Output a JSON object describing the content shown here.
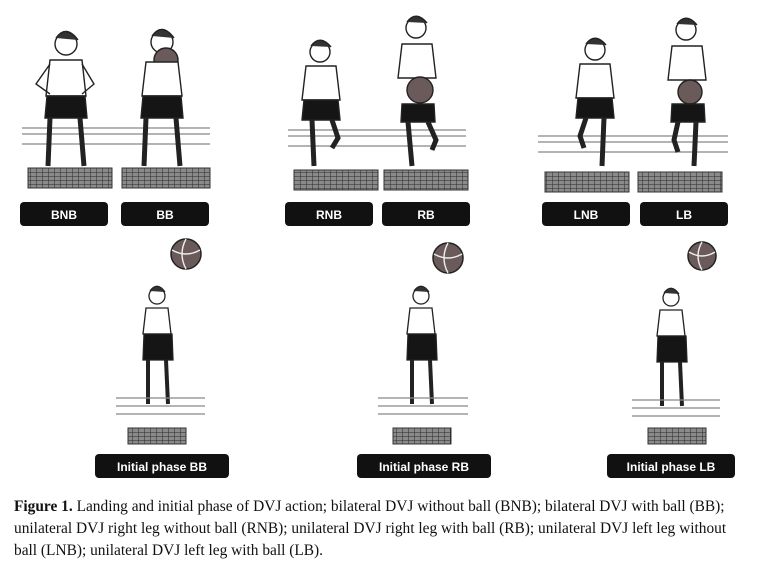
{
  "colors": {
    "label_bg": "#111111",
    "label_text": "#ffffff",
    "mat": "#3a3a3a",
    "ball": "#6a5a5a"
  },
  "panels": [
    {
      "left_label": "BNB",
      "right_label": "BB",
      "initial_label": "Initial phase BB"
    },
    {
      "left_label": "RNB",
      "right_label": "RB",
      "initial_label": "Initial phase RB"
    },
    {
      "left_label": "LNB",
      "right_label": "LB",
      "initial_label": "Initial phase LB"
    }
  ],
  "caption": {
    "label": "Figure 1.",
    "text": "Landing and initial phase of DVJ action; bilateral DVJ without ball (BNB); bilateral DVJ with ball (BB); unilateral DVJ right leg without ball (RNB); unilateral DVJ right leg with ball (RB); unilateral DVJ left leg without ball (LNB); unilateral DVJ left leg with ball (LB)."
  }
}
